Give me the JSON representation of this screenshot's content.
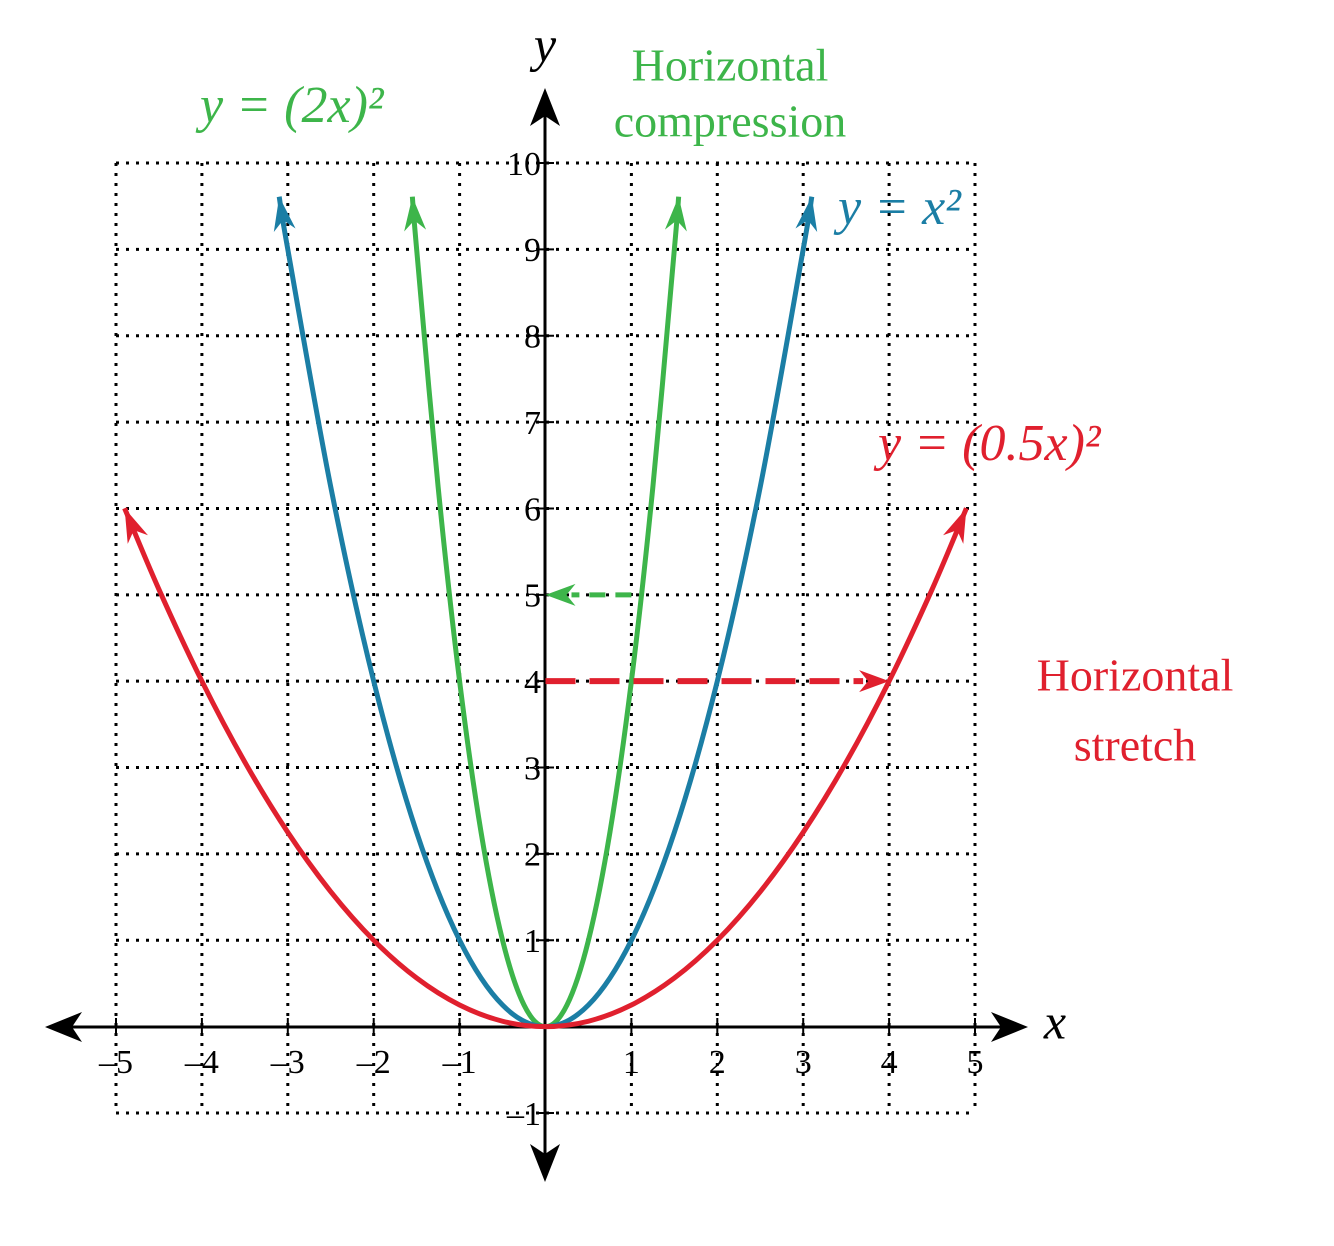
{
  "chart_data": {
    "type": "line",
    "x_label": "x",
    "y_label": "y",
    "xlim": [
      -5,
      5
    ],
    "ylim": [
      -1,
      10
    ],
    "xticks": [
      {
        "value": -5,
        "label": "–5"
      },
      {
        "value": -4,
        "label": "–4"
      },
      {
        "value": -3,
        "label": "–3"
      },
      {
        "value": -2,
        "label": "–2"
      },
      {
        "value": -1,
        "label": "–1"
      },
      1,
      2,
      3,
      4,
      5
    ],
    "yticks": [
      {
        "value": -1,
        "label": "–1"
      },
      1,
      2,
      3,
      4,
      5,
      6,
      7,
      8,
      9,
      10
    ],
    "grid": true,
    "series": [
      {
        "name": "y = (2x)²",
        "color": "#3db54a",
        "x": [
          -1.55,
          -1.5,
          -1.25,
          -1,
          -0.75,
          -0.5,
          -0.25,
          0,
          0.25,
          0.5,
          0.75,
          1,
          1.25,
          1.5,
          1.55
        ],
        "values": [
          9.61,
          9,
          6.25,
          4,
          2.25,
          1,
          0.25,
          0,
          0.25,
          1,
          2.25,
          4,
          6.25,
          9,
          9.61
        ]
      },
      {
        "name": "y = x²",
        "color": "#1b7ea5",
        "x": [
          -3.1,
          -3,
          -2.5,
          -2,
          -1.5,
          -1,
          -0.5,
          0,
          0.5,
          1,
          1.5,
          2,
          2.5,
          3,
          3.1
        ],
        "values": [
          9.61,
          9,
          6.25,
          4,
          2.25,
          1,
          0.25,
          0,
          0.25,
          1,
          2.25,
          4,
          6.25,
          9,
          9.61
        ]
      },
      {
        "name": "y = (0.5x)²",
        "color": "#e0202e",
        "x": [
          -4.9,
          -4.5,
          -4,
          -3.5,
          -3,
          -2.5,
          -2,
          -1.5,
          -1,
          -0.5,
          0,
          0.5,
          1,
          1.5,
          2,
          2.5,
          3,
          3.5,
          4,
          4.5,
          4.9
        ],
        "values": [
          6.0025,
          5.0625,
          4,
          3.0625,
          2.25,
          1.5625,
          1,
          0.5625,
          0.25,
          0.0625,
          0,
          0.0625,
          0.25,
          0.5625,
          1,
          1.5625,
          2.25,
          3.0625,
          4,
          5.0625,
          6.0025
        ]
      }
    ],
    "annotations": [
      {
        "lines": [
          "Horizontal",
          "compression"
        ],
        "color": "#3db54a"
      },
      {
        "lines": [
          "Horizontal",
          "stretch"
        ],
        "color": "#e0202e"
      }
    ],
    "arrows": [
      {
        "color": "#3db54a",
        "x": [
          1,
          0
        ],
        "values": [
          5,
          5
        ]
      },
      {
        "color": "#e0202e",
        "x": [
          0,
          4
        ],
        "values": [
          4,
          4
        ]
      }
    ]
  }
}
